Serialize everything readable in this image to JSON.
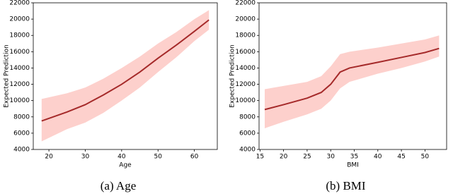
{
  "chart_data": [
    {
      "type": "line",
      "xlabel": "Age",
      "ylabel": "Expected Prediction",
      "caption": "(a)  Age",
      "x": [
        18,
        25,
        30,
        35,
        40,
        45,
        50,
        55,
        60,
        64
      ],
      "values": [
        7500,
        8600,
        9500,
        10700,
        12000,
        13500,
        15200,
        16800,
        18500,
        19900
      ],
      "color": "#a52a2a",
      "band": {
        "lower": [
          5000,
          6500,
          7300,
          8500,
          10000,
          11600,
          13500,
          15300,
          17300,
          18700
        ],
        "upper": [
          10200,
          10900,
          11600,
          12700,
          14000,
          15400,
          17000,
          18400,
          20000,
          21100
        ],
        "color": "#fdd0cc"
      },
      "xlim": [
        15.7,
        66.3
      ],
      "xticks": [
        20,
        30,
        40,
        50,
        60
      ],
      "ylim": [
        4000,
        22000
      ],
      "yticks": [
        4000,
        6000,
        8000,
        10000,
        12000,
        14000,
        16000,
        18000,
        20000,
        22000
      ]
    },
    {
      "type": "line",
      "xlabel": "BMI",
      "ylabel": "Expected Prediction",
      "caption": "(b)  BMI",
      "x": [
        16,
        20,
        25,
        28,
        30,
        32,
        34,
        40,
        45,
        50,
        53
      ],
      "values": [
        8900,
        9500,
        10300,
        11000,
        12000,
        13500,
        14000,
        14700,
        15300,
        15900,
        16400
      ],
      "color": "#a52a2a",
      "band": {
        "lower": [
          6600,
          7400,
          8300,
          9000,
          10000,
          11500,
          12300,
          13300,
          14000,
          14800,
          15400
        ],
        "upper": [
          11400,
          11800,
          12300,
          13000,
          14200,
          15700,
          16000,
          16500,
          17000,
          17500,
          18000
        ],
        "color": "#fdd0cc"
      },
      "xlim": [
        14.8,
        54.6
      ],
      "xticks": [
        15,
        20,
        25,
        30,
        35,
        40,
        45,
        50
      ],
      "ylim": [
        4000,
        22000
      ],
      "yticks": [
        4000,
        6000,
        8000,
        10000,
        12000,
        14000,
        16000,
        18000,
        20000,
        22000
      ]
    }
  ]
}
